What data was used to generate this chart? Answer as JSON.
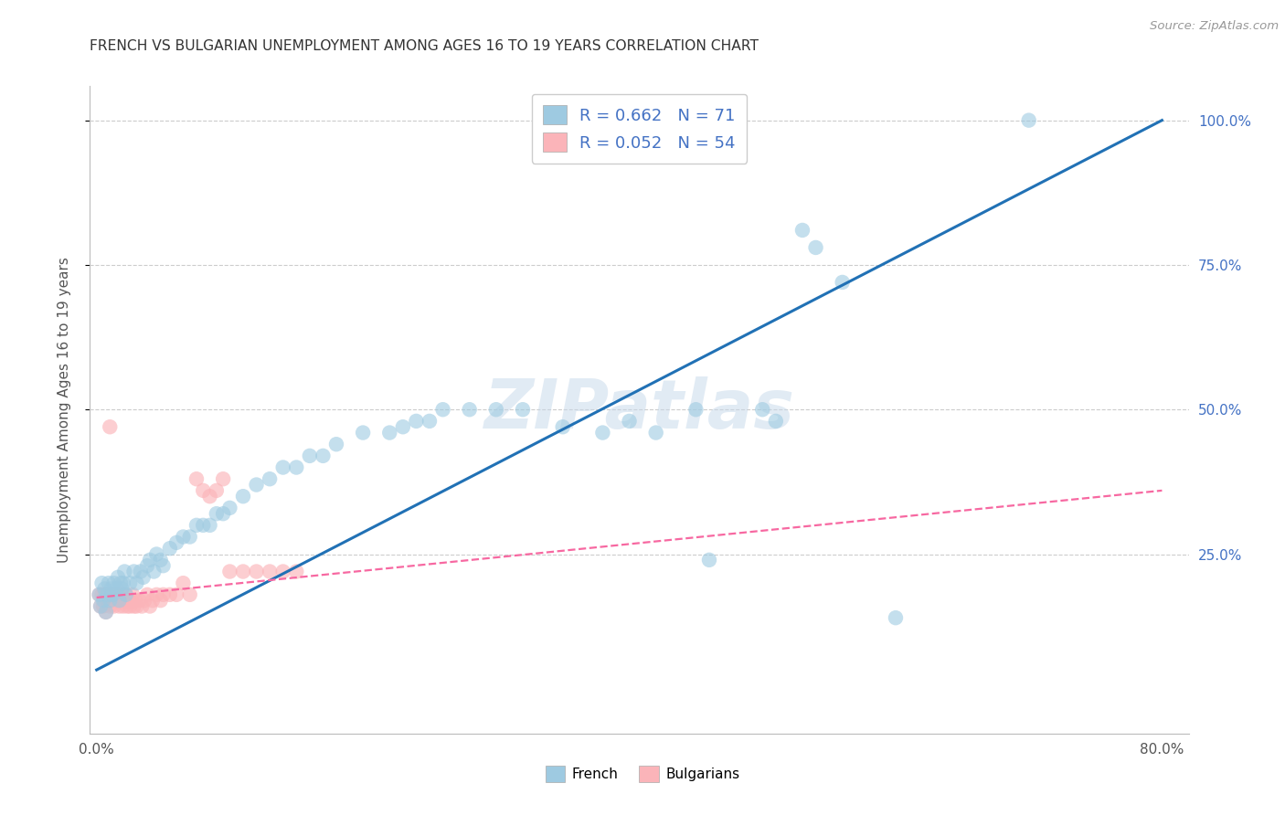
{
  "title": "FRENCH VS BULGARIAN UNEMPLOYMENT AMONG AGES 16 TO 19 YEARS CORRELATION CHART",
  "source": "Source: ZipAtlas.com",
  "ylabel": "Unemployment Among Ages 16 to 19 years",
  "xlim": [
    -0.005,
    0.82
  ],
  "ylim": [
    -0.06,
    1.06
  ],
  "ytick_positions": [
    0.25,
    0.5,
    0.75,
    1.0
  ],
  "yticklabels_right": [
    "25.0%",
    "50.0%",
    "75.0%",
    "100.0%"
  ],
  "xtick_positions": [
    0.0,
    0.1,
    0.2,
    0.3,
    0.4,
    0.5,
    0.6,
    0.7,
    0.8
  ],
  "xticklabels": [
    "0.0%",
    "",
    "",
    "",
    "",
    "",
    "",
    "",
    "80.0%"
  ],
  "french_R": 0.662,
  "french_N": 71,
  "bulgarian_R": 0.052,
  "bulgarian_N": 54,
  "french_color": "#9ecae1",
  "bulgarian_color": "#fbb4b9",
  "french_line_color": "#2171b5",
  "bulgarian_line_color": "#f768a1",
  "watermark": "ZIPatlas",
  "background_color": "#ffffff",
  "grid_color": "#cccccc",
  "french_line_x0": 0.0,
  "french_line_y0": 0.05,
  "french_line_x1": 0.8,
  "french_line_y1": 1.0,
  "bulgarian_line_x0": 0.0,
  "bulgarian_line_y0": 0.175,
  "bulgarian_line_x1": 0.8,
  "bulgarian_line_y1": 0.36,
  "french_scatter_x": [
    0.002,
    0.003,
    0.004,
    0.005,
    0.006,
    0.007,
    0.008,
    0.009,
    0.01,
    0.011,
    0.012,
    0.013,
    0.015,
    0.016,
    0.017,
    0.018,
    0.019,
    0.02,
    0.021,
    0.022,
    0.025,
    0.028,
    0.03,
    0.033,
    0.035,
    0.038,
    0.04,
    0.043,
    0.045,
    0.048,
    0.05,
    0.055,
    0.06,
    0.065,
    0.07,
    0.075,
    0.08,
    0.085,
    0.09,
    0.095,
    0.1,
    0.11,
    0.12,
    0.13,
    0.14,
    0.15,
    0.16,
    0.17,
    0.18,
    0.2,
    0.22,
    0.23,
    0.24,
    0.25,
    0.26,
    0.28,
    0.3,
    0.32,
    0.35,
    0.38,
    0.4,
    0.42,
    0.45,
    0.46,
    0.5,
    0.51,
    0.53,
    0.54,
    0.56,
    0.6,
    0.7
  ],
  "french_scatter_y": [
    0.18,
    0.16,
    0.2,
    0.17,
    0.19,
    0.15,
    0.18,
    0.2,
    0.17,
    0.19,
    0.18,
    0.2,
    0.19,
    0.21,
    0.17,
    0.2,
    0.19,
    0.2,
    0.22,
    0.18,
    0.2,
    0.22,
    0.2,
    0.22,
    0.21,
    0.23,
    0.24,
    0.22,
    0.25,
    0.24,
    0.23,
    0.26,
    0.27,
    0.28,
    0.28,
    0.3,
    0.3,
    0.3,
    0.32,
    0.32,
    0.33,
    0.35,
    0.37,
    0.38,
    0.4,
    0.4,
    0.42,
    0.42,
    0.44,
    0.46,
    0.46,
    0.47,
    0.48,
    0.48,
    0.5,
    0.5,
    0.5,
    0.5,
    0.47,
    0.46,
    0.48,
    0.46,
    0.5,
    0.24,
    0.5,
    0.48,
    0.81,
    0.78,
    0.72,
    0.14,
    1.0
  ],
  "bulgarian_scatter_x": [
    0.002,
    0.003,
    0.004,
    0.005,
    0.006,
    0.007,
    0.008,
    0.009,
    0.01,
    0.011,
    0.012,
    0.013,
    0.014,
    0.015,
    0.016,
    0.017,
    0.018,
    0.019,
    0.02,
    0.021,
    0.022,
    0.023,
    0.024,
    0.025,
    0.026,
    0.027,
    0.028,
    0.029,
    0.03,
    0.032,
    0.034,
    0.036,
    0.038,
    0.04,
    0.042,
    0.045,
    0.048,
    0.05,
    0.055,
    0.06,
    0.065,
    0.07,
    0.075,
    0.08,
    0.085,
    0.09,
    0.095,
    0.1,
    0.11,
    0.12,
    0.13,
    0.14,
    0.15,
    0.01
  ],
  "bulgarian_scatter_y": [
    0.18,
    0.16,
    0.18,
    0.16,
    0.18,
    0.15,
    0.17,
    0.18,
    0.16,
    0.18,
    0.17,
    0.16,
    0.18,
    0.17,
    0.18,
    0.16,
    0.17,
    0.18,
    0.16,
    0.17,
    0.18,
    0.16,
    0.17,
    0.16,
    0.17,
    0.18,
    0.16,
    0.17,
    0.16,
    0.17,
    0.16,
    0.17,
    0.18,
    0.16,
    0.17,
    0.18,
    0.17,
    0.18,
    0.18,
    0.18,
    0.2,
    0.18,
    0.38,
    0.36,
    0.35,
    0.36,
    0.38,
    0.22,
    0.22,
    0.22,
    0.22,
    0.22,
    0.22,
    0.47
  ]
}
